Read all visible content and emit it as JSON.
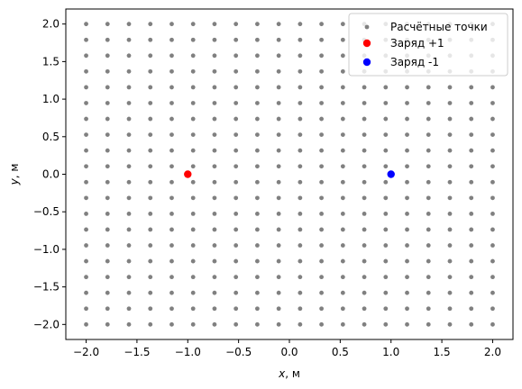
{
  "chart_data": {
    "type": "scatter",
    "title": "",
    "xlabel_var": "x",
    "xlabel_unit": ", м",
    "ylabel_var": "y",
    "ylabel_unit": ", м",
    "xlim": [
      -2.2,
      2.2
    ],
    "ylim": [
      -2.2,
      2.2
    ],
    "xticks": [
      -2.0,
      -1.5,
      -1.0,
      -0.5,
      0.0,
      0.5,
      1.0,
      1.5,
      2.0
    ],
    "yticks": [
      -2.0,
      -1.5,
      -1.0,
      -0.5,
      0.0,
      0.5,
      1.0,
      1.5,
      2.0
    ],
    "xtick_labels": [
      "−2.0",
      "−1.5",
      "−1.0",
      "−0.5",
      "0.0",
      "0.5",
      "1.0",
      "1.5",
      "2.0"
    ],
    "ytick_labels": [
      "−2.0",
      "−1.5",
      "−1.0",
      "−0.5",
      "0.0",
      "0.5",
      "1.0",
      "1.5",
      "2.0"
    ],
    "grid": false,
    "legend_position": "top-right",
    "series": [
      {
        "name": "Расчётные точки",
        "color": "#808080",
        "grid_points": {
          "x_start": -2.0,
          "x_end": 2.0,
          "y_start": -2.0,
          "y_end": 2.0,
          "count_per_axis": 20
        }
      },
      {
        "name": "Заряд +1",
        "color": "#ff0000",
        "points": [
          [
            -1.0,
            0.0
          ]
        ]
      },
      {
        "name": "Заряд -1",
        "color": "#0000ff",
        "points": [
          [
            1.0,
            0.0
          ]
        ]
      }
    ]
  }
}
